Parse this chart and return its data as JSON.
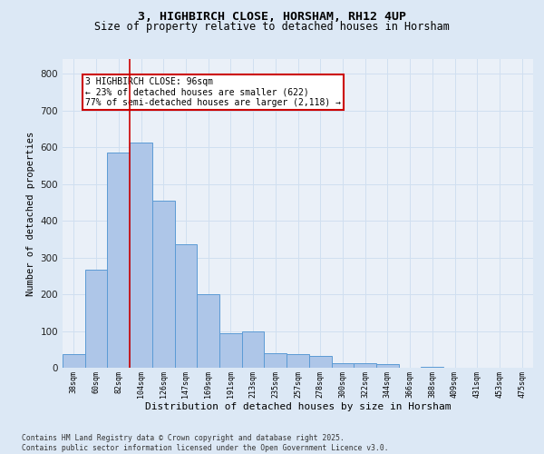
{
  "title1": "3, HIGHBIRCH CLOSE, HORSHAM, RH12 4UP",
  "title2": "Size of property relative to detached houses in Horsham",
  "xlabel": "Distribution of detached houses by size in Horsham",
  "ylabel": "Number of detached properties",
  "bar_labels": [
    "38sqm",
    "60sqm",
    "82sqm",
    "104sqm",
    "126sqm",
    "147sqm",
    "169sqm",
    "191sqm",
    "213sqm",
    "235sqm",
    "257sqm",
    "278sqm",
    "300sqm",
    "322sqm",
    "344sqm",
    "366sqm",
    "388sqm",
    "409sqm",
    "431sqm",
    "453sqm",
    "475sqm"
  ],
  "bar_values": [
    38,
    268,
    585,
    612,
    455,
    337,
    201,
    93,
    100,
    39,
    38,
    33,
    12,
    13,
    10,
    0,
    2,
    1,
    0,
    1,
    1
  ],
  "bar_color": "#aec6e8",
  "bar_edge_color": "#5b9bd5",
  "grid_color": "#d0dff0",
  "vline_color": "#cc0000",
  "vline_x": 2.5,
  "annotation_text": "3 HIGHBIRCH CLOSE: 96sqm\n← 23% of detached houses are smaller (622)\n77% of semi-detached houses are larger (2,118) →",
  "annotation_box_color": "#ffffff",
  "annotation_edge_color": "#cc0000",
  "ylim": [
    0,
    840
  ],
  "yticks": [
    0,
    100,
    200,
    300,
    400,
    500,
    600,
    700,
    800
  ],
  "footer_text": "Contains HM Land Registry data © Crown copyright and database right 2025.\nContains public sector information licensed under the Open Government Licence v3.0.",
  "bg_color": "#dce8f5",
  "plot_bg_color": "#eaf0f8"
}
